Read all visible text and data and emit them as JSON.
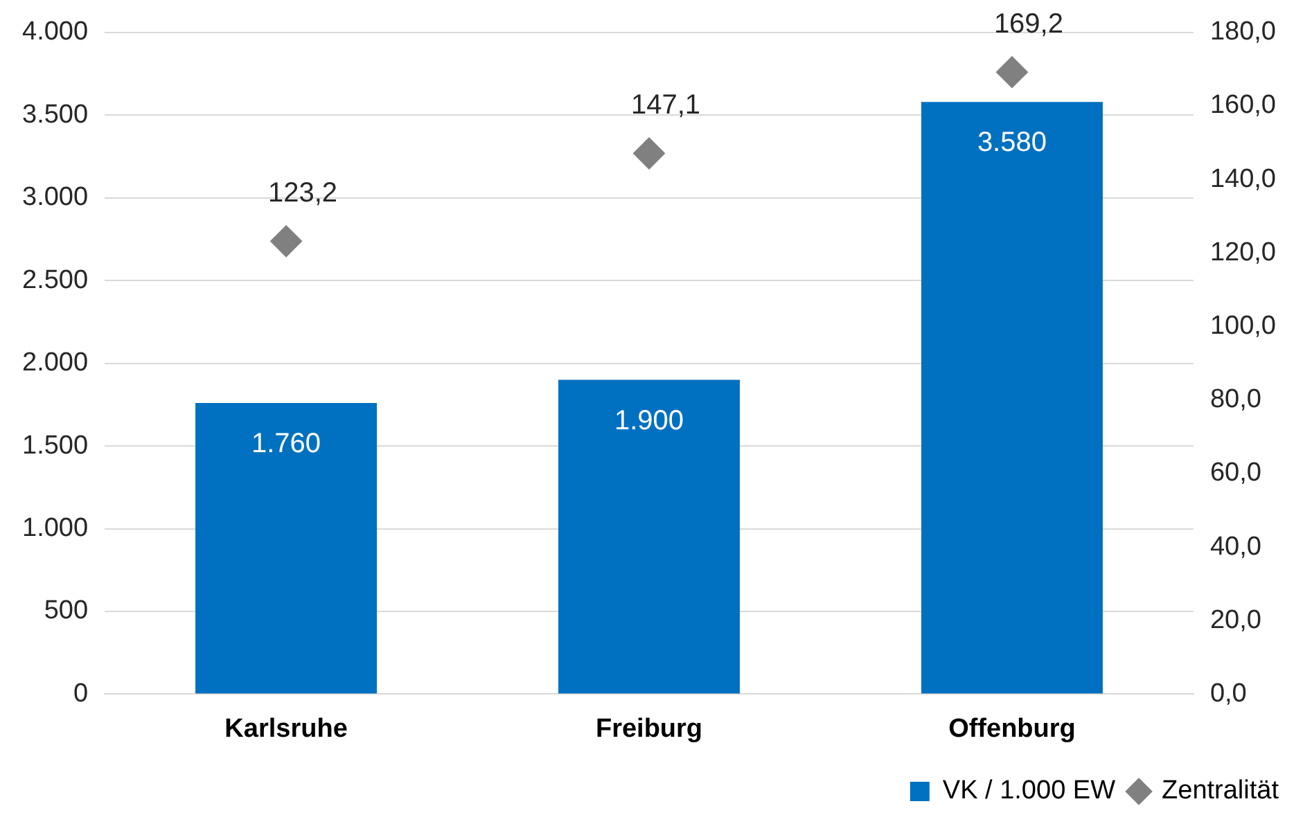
{
  "chart_data": {
    "type": "bar",
    "categories": [
      "Karlsruhe",
      "Freiburg",
      "Offenburg"
    ],
    "series": [
      {
        "name": "VK / 1.000 EW",
        "color": "#0070c0",
        "values": [
          1760,
          1900,
          3580
        ],
        "value_labels": [
          "1.760",
          "1.900",
          "3.580"
        ]
      },
      {
        "name": "Zentralität",
        "type": "scatter",
        "axis": "y2",
        "marker": "diamond",
        "color": "#808080",
        "x": [
          "Karlsruhe",
          "Freiburg",
          "Offenburg"
        ],
        "values": [
          123.2,
          147.1,
          169.2
        ],
        "value_labels": [
          "123,2",
          "147,1",
          "169,2"
        ]
      }
    ],
    "ylim": [
      0,
      4000
    ],
    "yticks": [
      {
        "value": 0,
        "label": "0"
      },
      {
        "value": 500,
        "label": "500"
      },
      {
        "value": 1000,
        "label": "1.000"
      },
      {
        "value": 1500,
        "label": "1.500"
      },
      {
        "value": 2000,
        "label": "2.000"
      },
      {
        "value": 2500,
        "label": "2.500"
      },
      {
        "value": 3000,
        "label": "3.000"
      },
      {
        "value": 3500,
        "label": "3.500"
      },
      {
        "value": 4000,
        "label": "4.000"
      }
    ],
    "y2lim": [
      0,
      180
    ],
    "y2ticks": [
      {
        "value": 0,
        "label": "0,0"
      },
      {
        "value": 20,
        "label": "20,0"
      },
      {
        "value": 40,
        "label": "40,0"
      },
      {
        "value": 60,
        "label": "60,0"
      },
      {
        "value": 80,
        "label": "80,0"
      },
      {
        "value": 100,
        "label": "100,0"
      },
      {
        "value": 120,
        "label": "120,0"
      },
      {
        "value": 140,
        "label": "140,0"
      },
      {
        "value": 160,
        "label": "160,0"
      },
      {
        "value": 180,
        "label": "180,0"
      }
    ],
    "grid": "y",
    "legend": "bottom right"
  }
}
